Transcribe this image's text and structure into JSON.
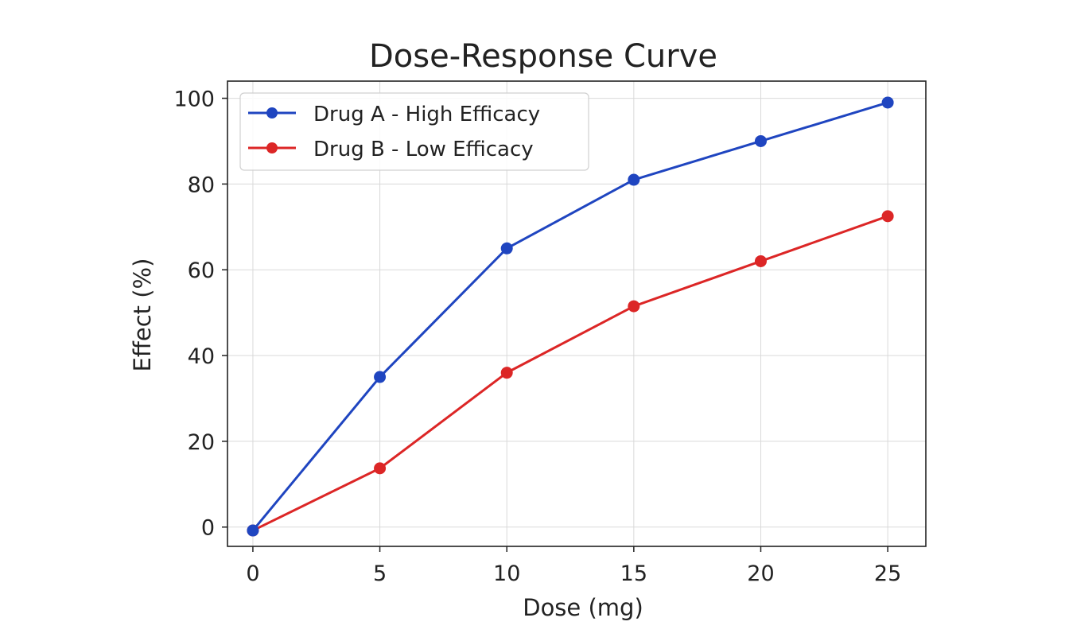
{
  "chart_data": {
    "type": "line",
    "title": "Dose-Response Curve",
    "xlabel": "Dose (mg)",
    "ylabel": "Effect (%)",
    "x": [
      0,
      5,
      10,
      15,
      20,
      25
    ],
    "xticks": [
      0,
      5,
      10,
      15,
      20,
      25
    ],
    "yticks": [
      0,
      20,
      40,
      60,
      80,
      100
    ],
    "xlim": [
      -1.0,
      26.5
    ],
    "ylim": [
      -4.5,
      104
    ],
    "grid": true,
    "legend_position": "top-left",
    "series": [
      {
        "name": "Drug A - High Efficacy",
        "color": "#1f45c0",
        "values": [
          -0.8,
          35,
          65,
          81,
          90,
          99
        ]
      },
      {
        "name": "Drug B - Low Efficacy",
        "color": "#dc2626",
        "values": [
          -0.8,
          13.7,
          36,
          51.5,
          62,
          72.5
        ]
      }
    ]
  }
}
